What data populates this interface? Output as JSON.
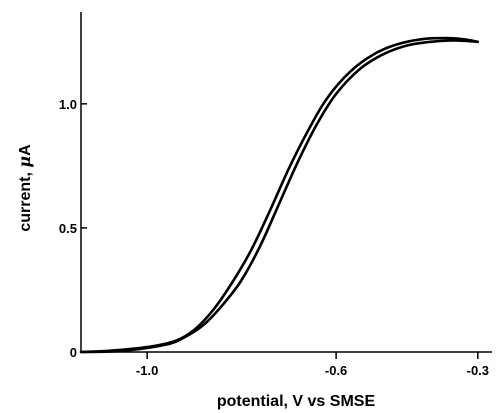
{
  "chart_data": {
    "type": "line",
    "xlabel": "potential, V vs SMSE",
    "ylabel_text": "current, ",
    "ylabel_unit_greek": "μ",
    "ylabel_unit": "A",
    "xlim": [
      -1.14,
      -0.27
    ],
    "ylim": [
      0,
      1.37
    ],
    "x_ticks": [
      {
        "value": -1.0,
        "label": "-1.0"
      },
      {
        "value": -0.6,
        "label": "-0.6"
      },
      {
        "value": -0.3,
        "label": "-0.3"
      }
    ],
    "y_ticks": [
      {
        "value": 0,
        "label": "0"
      },
      {
        "value": 0.5,
        "label": "0.5"
      },
      {
        "value": 1.0,
        "label": "1.0"
      }
    ],
    "series": [
      {
        "values": [
          [
            -1.14,
            0.0
          ],
          [
            -1.05,
            0.005
          ],
          [
            -0.96,
            0.03
          ],
          [
            -0.92,
            0.06
          ],
          [
            -0.88,
            0.11
          ],
          [
            -0.84,
            0.19
          ],
          [
            -0.8,
            0.29
          ],
          [
            -0.76,
            0.43
          ],
          [
            -0.72,
            0.6
          ],
          [
            -0.68,
            0.77
          ],
          [
            -0.64,
            0.92
          ],
          [
            -0.6,
            1.04
          ],
          [
            -0.55,
            1.14
          ],
          [
            -0.5,
            1.2
          ],
          [
            -0.45,
            1.235
          ],
          [
            -0.4,
            1.25
          ],
          [
            -0.35,
            1.255
          ],
          [
            -0.3,
            1.25
          ]
        ]
      },
      {
        "values": [
          [
            -0.3,
            1.25
          ],
          [
            -0.33,
            1.26
          ],
          [
            -0.37,
            1.265
          ],
          [
            -0.42,
            1.26
          ],
          [
            -0.47,
            1.24
          ],
          [
            -0.52,
            1.2
          ],
          [
            -0.57,
            1.13
          ],
          [
            -0.62,
            1.02
          ],
          [
            -0.66,
            0.89
          ],
          [
            -0.7,
            0.74
          ],
          [
            -0.74,
            0.57
          ],
          [
            -0.78,
            0.41
          ],
          [
            -0.82,
            0.28
          ],
          [
            -0.86,
            0.17
          ],
          [
            -0.9,
            0.09
          ],
          [
            -0.94,
            0.045
          ],
          [
            -1.0,
            0.02
          ],
          [
            -1.08,
            0.005
          ],
          [
            -1.14,
            0.0
          ]
        ]
      }
    ]
  }
}
